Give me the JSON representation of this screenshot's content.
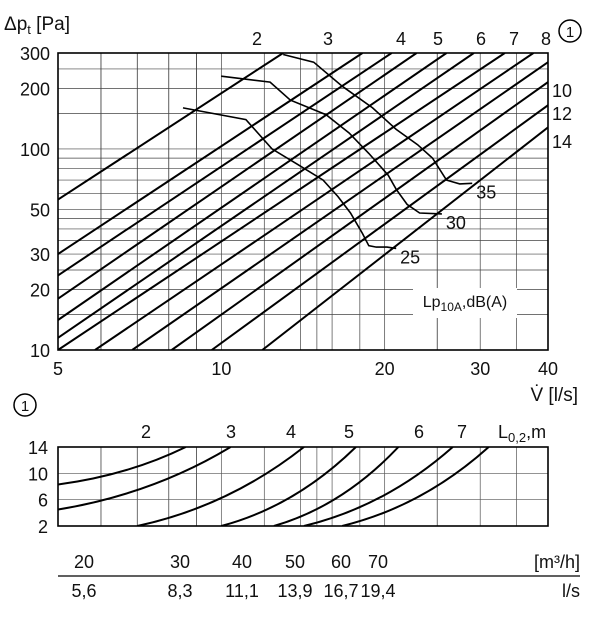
{
  "chart_data": [
    {
      "type": "line",
      "title": "",
      "ylabel": "Δp_t [Pa]",
      "xlabel": "V̇ [l/s]",
      "x_scale": "log",
      "y_scale": "log",
      "xlim": [
        5,
        40
      ],
      "ylim": [
        10,
        300
      ],
      "grid": true,
      "x_ticks": [
        5,
        10,
        20,
        30,
        40
      ],
      "y_ticks": [
        10,
        20,
        30,
        50,
        100,
        200,
        300
      ],
      "x_tick_labels": [
        "5",
        "10",
        "20",
        "30",
        "40"
      ],
      "y_tick_labels": [
        "10",
        "20",
        "30",
        "50",
        "100",
        "200",
        "300"
      ],
      "marker": "①",
      "throw_line_label": "L_0,2,m",
      "sound_label": "Lp10A,dB(A)",
      "throw_series": [
        {
          "name": "2",
          "points": [
            [
              5,
              56
            ],
            [
              13,
              300
            ]
          ]
        },
        {
          "name": "",
          "points": [
            [
              5,
              30
            ],
            [
              18.2,
              300
            ]
          ]
        },
        {
          "name": "3",
          "points": [
            [
              5,
              23.5
            ],
            [
              20.6,
              300
            ]
          ]
        },
        {
          "name": "",
          "points": [
            [
              5,
              18
            ],
            [
              22.9,
              300
            ]
          ]
        },
        {
          "name": "4",
          "points": [
            [
              5,
              14.1
            ],
            [
              26,
              300
            ]
          ]
        },
        {
          "name": "5",
          "points": [
            [
              5,
              11.5
            ],
            [
              29.2,
              300
            ]
          ]
        },
        {
          "name": "6",
          "points": [
            [
              5,
              10
            ],
            [
              33.3,
              300
            ]
          ]
        },
        {
          "name": "7",
          "points": [
            [
              5.85,
              10
            ],
            [
              37.6,
              300
            ]
          ]
        },
        {
          "name": "8",
          "points": [
            [
              6.85,
              10
            ],
            [
              40,
              270
            ]
          ]
        },
        {
          "name": "10",
          "points": [
            [
              8.1,
              10
            ],
            [
              40,
              215
            ]
          ]
        },
        {
          "name": "12",
          "points": [
            [
              9.6,
              10
            ],
            [
              40,
              165
            ]
          ]
        },
        {
          "name": "14",
          "points": [
            [
              11.9,
              10
            ],
            [
              40,
              128
            ]
          ]
        }
      ],
      "sound_series": [
        {
          "name": "25",
          "points": [
            [
              8.5,
              160
            ],
            [
              11.1,
              140
            ],
            [
              12.4,
              100
            ],
            [
              13.9,
              83
            ],
            [
              15.4,
              70
            ],
            [
              16.4,
              58
            ],
            [
              17.3,
              48
            ],
            [
              18.2,
              38
            ],
            [
              18.7,
              33
            ],
            [
              19.3,
              32.5
            ],
            [
              20.2,
              32.5
            ],
            [
              21,
              32
            ]
          ]
        },
        {
          "name": "30",
          "points": [
            [
              10,
              230
            ],
            [
              12.3,
              215
            ],
            [
              13.4,
              175
            ],
            [
              15.6,
              148
            ],
            [
              17.2,
              120
            ],
            [
              18.7,
              95
            ],
            [
              20.3,
              74
            ],
            [
              21,
              63
            ],
            [
              22,
              53
            ],
            [
              23.2,
              48
            ],
            [
              25.5,
              47.5
            ]
          ]
        },
        {
          "name": "35",
          "points": [
            [
              13,
              295
            ],
            [
              14.8,
              270
            ],
            [
              16.7,
              205
            ],
            [
              19,
              160
            ],
            [
              21,
              125
            ],
            [
              23,
              105
            ],
            [
              24.5,
              90
            ],
            [
              26,
              70
            ],
            [
              27.5,
              67
            ],
            [
              29,
              67.5
            ]
          ]
        }
      ]
    },
    {
      "type": "line",
      "title": "",
      "xlabel": "",
      "ylabel": "",
      "y_scale": "linear",
      "ylim": [
        2,
        14
      ],
      "xlim": [
        5,
        40
      ],
      "y_ticks": [
        2,
        6,
        10,
        14
      ],
      "y_tick_labels": [
        "2",
        "6",
        "10",
        "14"
      ],
      "marker": "①",
      "header_label": "L0,2,m",
      "series": [
        {
          "name": "2",
          "points": [
            [
              5,
              4.5
            ],
            [
              10.4,
              14
            ]
          ]
        },
        {
          "name": "",
          "points": [
            [
              5,
              8.3
            ],
            [
              8.6,
              14
            ]
          ]
        },
        {
          "name": "3",
          "points": [
            [
              7,
              2
            ],
            [
              14.2,
              14
            ]
          ]
        },
        {
          "name": "4",
          "points": [
            [
              10,
              2
            ],
            [
              17.7,
              14
            ]
          ]
        },
        {
          "name": "5",
          "points": [
            [
              12.5,
              2
            ],
            [
              21.2,
              14
            ]
          ]
        },
        {
          "name": "6",
          "points": [
            [
              14.2,
              2
            ],
            [
              26.7,
              14
            ]
          ]
        },
        {
          "name": "7",
          "points": [
            [
              16.7,
              2
            ],
            [
              31.1,
              14
            ]
          ]
        }
      ],
      "secondary_axes": {
        "m3h_label": "[m³/h]",
        "ls_label": "l/s",
        "m3h_values": [
          "20",
          "30",
          "40",
          "50",
          "60",
          "70"
        ],
        "ls_values": [
          "5,6",
          "8,3",
          "11,1",
          "13,9",
          "16,7",
          "19,4"
        ]
      }
    }
  ]
}
